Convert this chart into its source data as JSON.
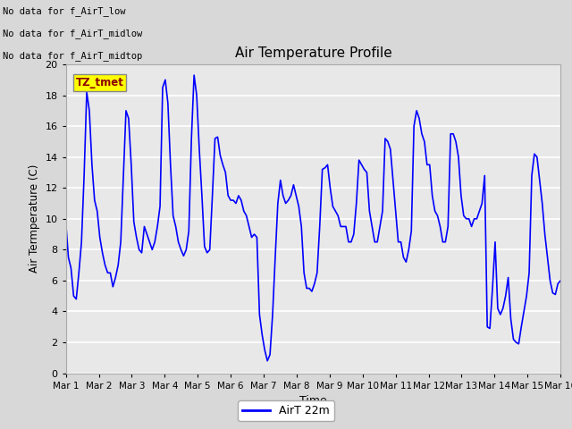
{
  "title": "Air Temperature Profile",
  "xlabel": "Time",
  "ylabel": "Air Termperature (C)",
  "xlim_start": 0,
  "xlim_end": 15,
  "ylim": [
    0,
    20
  ],
  "yticks": [
    0,
    2,
    4,
    6,
    8,
    10,
    12,
    14,
    16,
    18,
    20
  ],
  "xtick_labels": [
    "Mar 1",
    "Mar 2",
    "Mar 3",
    "Mar 4",
    "Mar 5",
    "Mar 6",
    "Mar 7",
    "Mar 8",
    "Mar 9",
    "Mar 10",
    "Mar 11",
    "Mar 12",
    "Mar 13",
    "Mar 14",
    "Mar 15",
    "Mar 16"
  ],
  "line_color": "blue",
  "line_width": 1.2,
  "legend_label": "AirT 22m",
  "legend_color": "blue",
  "bg_color": "#d8d8d8",
  "plot_bg_color": "#e8e8e8",
  "annotations": [
    "No data for f_AirT_low",
    "No data for f_AirT_midlow",
    "No data for f_AirT_midtop"
  ],
  "tz_label": "TZ_tmet",
  "temperatures": [
    9.8,
    7.5,
    6.8,
    5.0,
    4.8,
    6.5,
    8.5,
    12.8,
    18.2,
    17.0,
    13.5,
    11.2,
    10.5,
    8.8,
    7.8,
    7.0,
    6.5,
    6.5,
    5.6,
    6.2,
    7.0,
    8.5,
    12.7,
    17.0,
    16.5,
    13.5,
    9.8,
    8.8,
    8.0,
    7.8,
    9.5,
    9.0,
    8.5,
    8.0,
    8.5,
    9.5,
    10.8,
    18.5,
    19.0,
    17.5,
    13.5,
    10.2,
    9.5,
    8.5,
    8.0,
    7.6,
    8.0,
    9.2,
    15.2,
    19.3,
    18.0,
    14.5,
    11.5,
    8.2,
    7.8,
    8.0,
    11.5,
    15.2,
    15.3,
    14.1,
    13.5,
    13.0,
    11.5,
    11.2,
    11.2,
    11.0,
    11.5,
    11.2,
    10.5,
    10.2,
    9.5,
    8.8,
    9.0,
    8.8,
    3.8,
    2.5,
    1.5,
    0.8,
    1.2,
    3.8,
    7.5,
    11.0,
    12.5,
    11.5,
    11.0,
    11.2,
    11.5,
    12.2,
    11.5,
    10.8,
    9.5,
    6.5,
    5.5,
    5.5,
    5.3,
    5.8,
    6.5,
    9.5,
    13.2,
    13.3,
    13.5,
    12.0,
    10.8,
    10.5,
    10.2,
    9.5,
    9.5,
    9.5,
    8.5,
    8.5,
    9.0,
    11.0,
    13.8,
    13.5,
    13.2,
    13.0,
    10.5,
    9.5,
    8.5,
    8.5,
    9.5,
    10.5,
    15.2,
    15.0,
    14.5,
    12.5,
    10.5,
    8.5,
    8.5,
    7.5,
    7.2,
    8.0,
    9.2,
    16.0,
    17.0,
    16.5,
    15.5,
    15.0,
    13.5,
    13.5,
    11.5,
    10.5,
    10.2,
    9.5,
    8.5,
    8.5,
    9.5,
    15.5,
    15.5,
    15.0,
    14.0,
    11.5,
    10.2,
    10.0,
    10.0,
    9.5,
    10.0,
    10.0,
    10.5,
    11.0,
    12.8,
    3.0,
    2.9,
    5.5,
    8.5,
    4.2,
    3.8,
    4.2,
    5.0,
    6.2,
    3.5,
    2.2,
    2.0,
    1.9,
    3.0,
    4.0,
    5.0,
    6.5,
    12.8,
    14.2,
    14.0,
    12.5,
    11.0,
    9.0,
    7.5,
    6.0,
    5.2,
    5.1,
    5.8,
    6.0
  ]
}
